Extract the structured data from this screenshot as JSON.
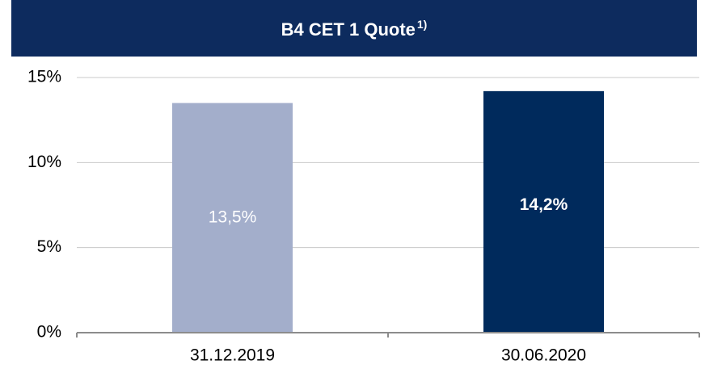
{
  "chart_data": {
    "type": "bar",
    "title": "B4 CET 1 Quote",
    "title_superscript": "1)",
    "categories": [
      "31.12.2019",
      "30.06.2020"
    ],
    "values": [
      13.5,
      14.2
    ],
    "value_labels": [
      "13,5%",
      "14,2%"
    ],
    "colors": [
      "#a3aecb",
      "#002a5c"
    ],
    "ylim": [
      0,
      15
    ],
    "yticks": [
      {
        "value": 0,
        "label": "0%"
      },
      {
        "value": 5,
        "label": "5%"
      },
      {
        "value": 10,
        "label": "10%"
      },
      {
        "value": 15,
        "label": "15%"
      }
    ],
    "grid": true
  }
}
